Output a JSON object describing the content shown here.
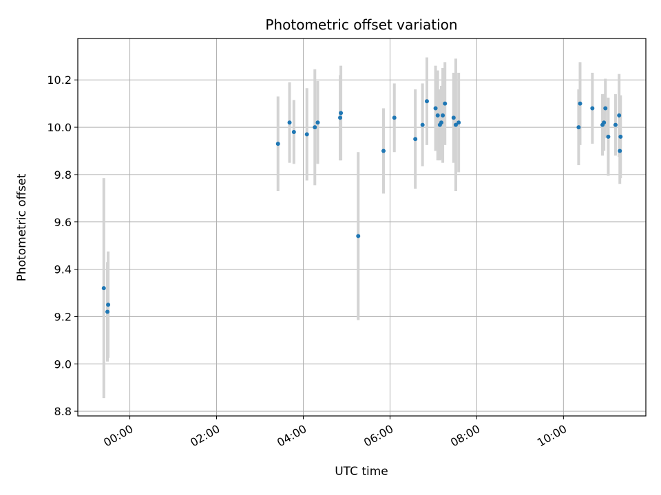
{
  "chart_data": {
    "type": "scatter",
    "title": "Photometric offset variation",
    "xlabel": "UTC time",
    "ylabel": "Photometric offset",
    "x_axis": {
      "kind": "time",
      "range": [
        "-01:12",
        "11:54"
      ],
      "ticks": [
        "00:00",
        "02:00",
        "04:00",
        "06:00",
        "08:00",
        "10:00"
      ]
    },
    "y_axis": {
      "range": [
        8.78,
        10.375
      ],
      "ticks": [
        "8.8",
        "9.0",
        "9.2",
        "9.4",
        "9.6",
        "9.8",
        "10.0",
        "10.2"
      ]
    },
    "grid": true,
    "legend": "none",
    "colors": {
      "point": "#1f77b4",
      "errorbar": "#d3d3d3",
      "grid": "#b0b0b0"
    },
    "points": [
      {
        "t": "-00:36",
        "y": 9.32,
        "err": 0.465
      },
      {
        "t": "-00:31",
        "y": 9.22,
        "err": 0.21
      },
      {
        "t": "-00:30",
        "y": 9.25,
        "err": 0.225
      },
      {
        "t": "03:25",
        "y": 9.93,
        "err": 0.2
      },
      {
        "t": "03:41",
        "y": 10.02,
        "err": 0.17
      },
      {
        "t": "03:47",
        "y": 9.98,
        "err": 0.135
      },
      {
        "t": "04:05",
        "y": 9.97,
        "err": 0.195
      },
      {
        "t": "04:16",
        "y": 10.0,
        "err": 0.245
      },
      {
        "t": "04:20",
        "y": 10.02,
        "err": 0.175
      },
      {
        "t": "04:51",
        "y": 10.04,
        "err": 0.18
      },
      {
        "t": "04:52",
        "y": 10.06,
        "err": 0.2
      },
      {
        "t": "05:16",
        "y": 9.54,
        "err": 0.355
      },
      {
        "t": "05:51",
        "y": 9.9,
        "err": 0.18
      },
      {
        "t": "06:06",
        "y": 10.04,
        "err": 0.145
      },
      {
        "t": "06:35",
        "y": 9.95,
        "err": 0.21
      },
      {
        "t": "06:45",
        "y": 10.01,
        "err": 0.175
      },
      {
        "t": "06:51",
        "y": 10.11,
        "err": 0.185
      },
      {
        "t": "07:03",
        "y": 10.08,
        "err": 0.18
      },
      {
        "t": "07:06",
        "y": 10.05,
        "err": 0.19
      },
      {
        "t": "07:09",
        "y": 10.01,
        "err": 0.15
      },
      {
        "t": "07:11",
        "y": 10.02,
        "err": 0.155
      },
      {
        "t": "07:13",
        "y": 10.05,
        "err": 0.2
      },
      {
        "t": "07:16",
        "y": 10.1,
        "err": 0.175
      },
      {
        "t": "07:28",
        "y": 10.04,
        "err": 0.19
      },
      {
        "t": "07:31",
        "y": 10.01,
        "err": 0.28
      },
      {
        "t": "07:35",
        "y": 10.02,
        "err": 0.21
      },
      {
        "t": "10:21",
        "y": 10.0,
        "err": 0.16
      },
      {
        "t": "10:23",
        "y": 10.1,
        "err": 0.175
      },
      {
        "t": "10:40",
        "y": 10.08,
        "err": 0.15
      },
      {
        "t": "10:54",
        "y": 10.01,
        "err": 0.13
      },
      {
        "t": "10:56",
        "y": 10.02,
        "err": 0.12
      },
      {
        "t": "10:58",
        "y": 10.08,
        "err": 0.125
      },
      {
        "t": "11:02",
        "y": 9.96,
        "err": 0.165
      },
      {
        "t": "11:12",
        "y": 10.01,
        "err": 0.13
      },
      {
        "t": "11:17",
        "y": 10.05,
        "err": 0.175
      },
      {
        "t": "11:18",
        "y": 9.9,
        "err": 0.14
      },
      {
        "t": "11:19",
        "y": 9.96,
        "err": 0.175
      }
    ]
  }
}
